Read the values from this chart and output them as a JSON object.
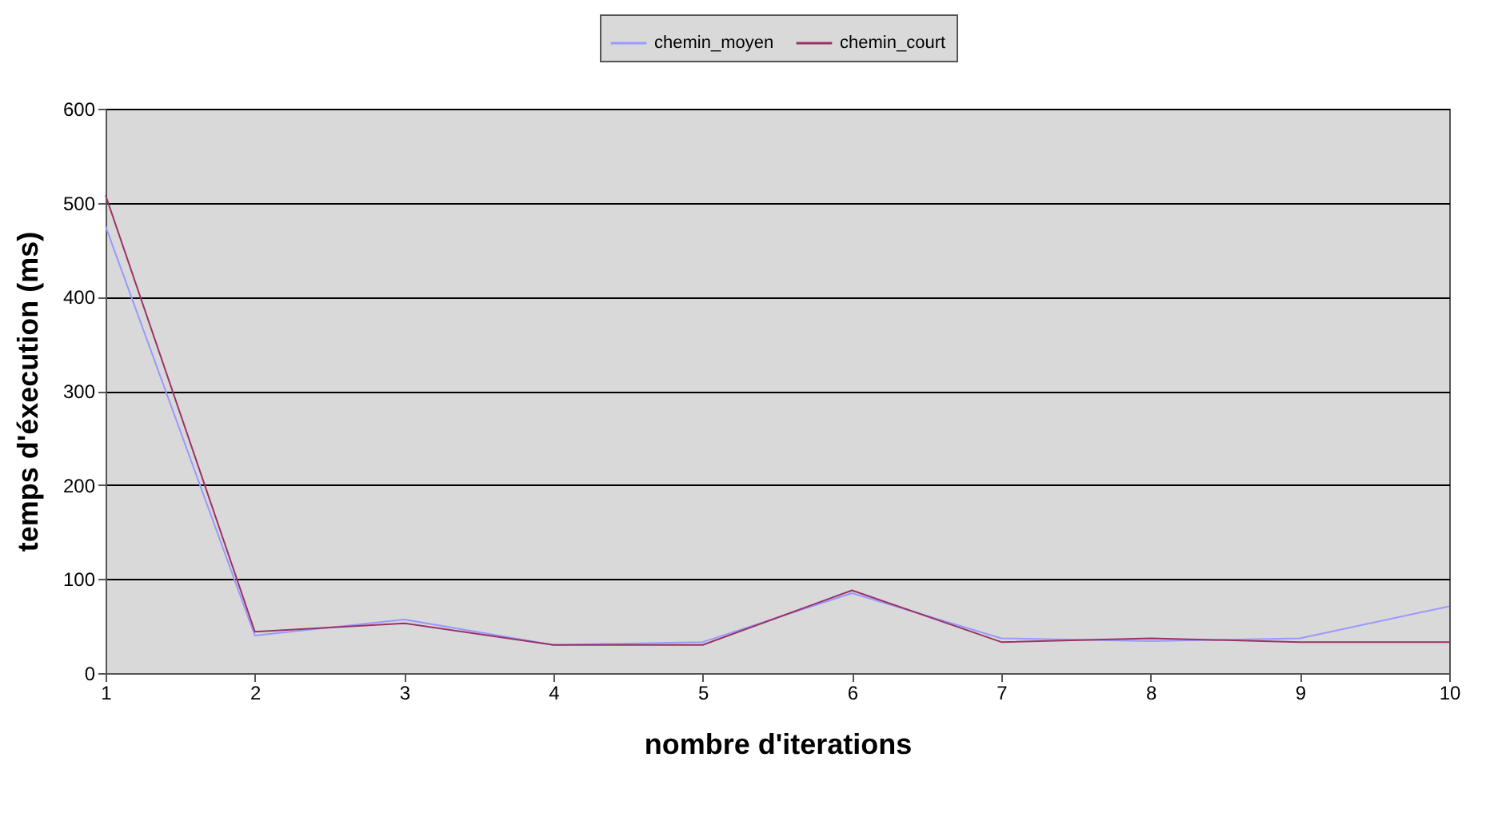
{
  "chart_data": {
    "type": "line",
    "xlabel": "nombre d'iterations",
    "ylabel": "temps d'éxecution (ms)",
    "x": [
      1,
      2,
      3,
      4,
      5,
      6,
      7,
      8,
      9,
      10
    ],
    "xlim": [
      1,
      10
    ],
    "xticks": [
      1,
      2,
      3,
      4,
      5,
      6,
      7,
      8,
      9,
      10
    ],
    "ylim": [
      0,
      600
    ],
    "yticks": [
      0,
      100,
      200,
      300,
      400,
      500,
      600
    ],
    "grid": "y",
    "legend": "top",
    "series": [
      {
        "name": "chemin_moyen",
        "color": "#9999ff",
        "values": [
          475,
          40,
          57,
          30,
          33,
          85,
          37,
          34,
          37,
          71
        ]
      },
      {
        "name": "chemin_court",
        "color": "#993366",
        "values": [
          508,
          44,
          53,
          30,
          30,
          88,
          33,
          37,
          33,
          33
        ]
      }
    ]
  }
}
